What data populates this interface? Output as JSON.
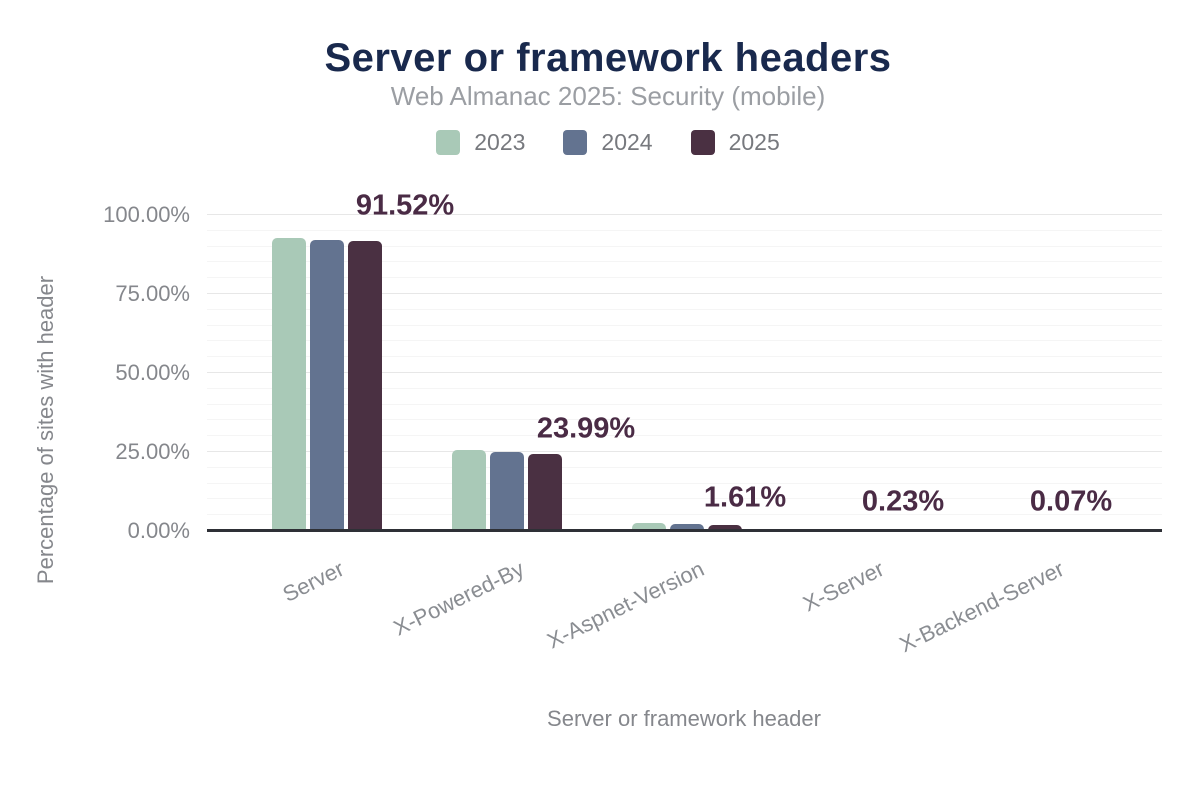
{
  "header": {
    "title": "Server or framework headers",
    "subtitle": "Web Almanac 2025: Security (mobile)"
  },
  "chart_data": {
    "type": "bar",
    "title": "Server or framework headers",
    "subtitle": "Web Almanac 2025: Security (mobile)",
    "xlabel": "Server or framework header",
    "ylabel": "Percentage of sites with header",
    "categories": [
      "Server",
      "X-Powered-By",
      "X-Aspnet-Version",
      "X-Server",
      "X-Backend-Server"
    ],
    "series": [
      {
        "name": "2023",
        "color": "#a9c9b7",
        "values": [
          92.4,
          25.2,
          2.1,
          0.3,
          0.09
        ]
      },
      {
        "name": "2024",
        "color": "#637390",
        "values": [
          91.8,
          24.6,
          1.8,
          0.26,
          0.08
        ]
      },
      {
        "name": "2025",
        "color": "#4a3042",
        "values": [
          91.52,
          23.99,
          1.61,
          0.23,
          0.07
        ]
      }
    ],
    "annotations": {
      "series": "2025",
      "labels": [
        "91.52%",
        "23.99%",
        "1.61%",
        "0.23%",
        "0.07%"
      ],
      "color": "#4a2b45"
    },
    "y_ticks": [
      {
        "label": "0.00%",
        "value": 0
      },
      {
        "label": "25.00%",
        "value": 25
      },
      {
        "label": "50.00%",
        "value": 50
      },
      {
        "label": "75.00%",
        "value": 75
      },
      {
        "label": "100.00%",
        "value": 100
      }
    ],
    "ylim": [
      0,
      100
    ],
    "grid": "horizontal major every 25%, faint minor every 5%",
    "legend_position": "top"
  },
  "colors": {
    "title": "#19294d",
    "subtitle": "#9b9ea3",
    "axis_text": "#85878c",
    "axis_line": "#2e3036",
    "grid_major": "#e7e7e7",
    "grid_minor": "#f5f5f5",
    "annotation": "#4a2b45"
  }
}
